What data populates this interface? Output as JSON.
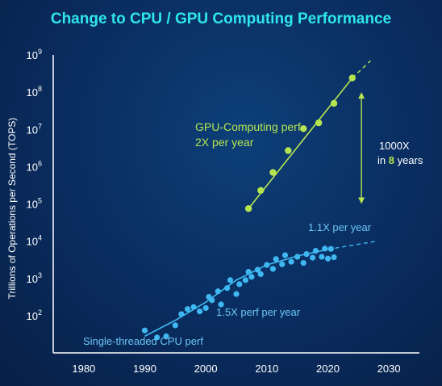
{
  "chart_data": {
    "type": "scatter",
    "title": "Change to CPU / GPU Computing Performance",
    "ylabel": "Trillions of Operations per Second (TOPS)",
    "xlabel": "",
    "y_scale": "log",
    "xlim": [
      1975,
      2035
    ],
    "ylim": [
      10,
      1000000000
    ],
    "x_ticks": [
      "1980",
      "1990",
      "2000",
      "2010",
      "2020",
      "2030"
    ],
    "y_ticks": [
      {
        "base": "10",
        "exp": "2",
        "value": 100
      },
      {
        "base": "10",
        "exp": "3",
        "value": 1000
      },
      {
        "base": "10",
        "exp": "4",
        "value": 10000
      },
      {
        "base": "10",
        "exp": "5",
        "value": 100000
      },
      {
        "base": "10",
        "exp": "6",
        "value": 1000000
      },
      {
        "base": "10",
        "exp": "7",
        "value": 10000000
      },
      {
        "base": "10",
        "exp": "8",
        "value": 100000000
      },
      {
        "base": "10",
        "exp": "9",
        "value": 1000000000
      }
    ],
    "colors": {
      "gpu": "#b5e550",
      "cpu": "#3fb8f2",
      "accent": "#2ee6ee"
    },
    "series": [
      {
        "name": "GPU-Computing perf",
        "points": [
          {
            "x": 2007,
            "y": 75000
          },
          {
            "x": 2009,
            "y": 230000
          },
          {
            "x": 2011,
            "y": 700000
          },
          {
            "x": 2013.5,
            "y": 2700000
          },
          {
            "x": 2016,
            "y": 10500000
          },
          {
            "x": 2018.5,
            "y": 15000000
          },
          {
            "x": 2021,
            "y": 50000000
          },
          {
            "x": 2024,
            "y": 240000000
          }
        ],
        "trend": [
          {
            "x": 2007,
            "y": 75000
          },
          {
            "x": 2024,
            "y": 240000000
          }
        ],
        "trend_dashed": [
          {
            "x": 2024,
            "y": 240000000
          },
          {
            "x": 2027,
            "y": 700000000
          }
        ]
      },
      {
        "name": "Single-threaded CPU perf",
        "points": [
          {
            "x": 1990,
            "y": 40
          },
          {
            "x": 1992,
            "y": 26
          },
          {
            "x": 1993.5,
            "y": 28
          },
          {
            "x": 1995,
            "y": 55
          },
          {
            "x": 1996,
            "y": 110
          },
          {
            "x": 1997,
            "y": 150
          },
          {
            "x": 1998,
            "y": 170
          },
          {
            "x": 1999,
            "y": 130
          },
          {
            "x": 2000,
            "y": 160
          },
          {
            "x": 2000.5,
            "y": 320
          },
          {
            "x": 2001,
            "y": 260
          },
          {
            "x": 2002,
            "y": 450
          },
          {
            "x": 2002.5,
            "y": 200
          },
          {
            "x": 2003.5,
            "y": 550
          },
          {
            "x": 2004,
            "y": 900
          },
          {
            "x": 2005,
            "y": 380
          },
          {
            "x": 2005.5,
            "y": 700
          },
          {
            "x": 2006.5,
            "y": 900
          },
          {
            "x": 2007,
            "y": 1500
          },
          {
            "x": 2007.5,
            "y": 1100
          },
          {
            "x": 2008.5,
            "y": 1700
          },
          {
            "x": 2009,
            "y": 1300
          },
          {
            "x": 2010,
            "y": 2300
          },
          {
            "x": 2011,
            "y": 1800
          },
          {
            "x": 2011.5,
            "y": 3300
          },
          {
            "x": 2012.5,
            "y": 2400
          },
          {
            "x": 2013,
            "y": 4200
          },
          {
            "x": 2014,
            "y": 2800
          },
          {
            "x": 2015,
            "y": 3800
          },
          {
            "x": 2016,
            "y": 2600
          },
          {
            "x": 2016.5,
            "y": 4500
          },
          {
            "x": 2017.5,
            "y": 3600
          },
          {
            "x": 2018,
            "y": 5500
          },
          {
            "x": 2019,
            "y": 3800
          },
          {
            "x": 2019.5,
            "y": 6300
          },
          {
            "x": 2020,
            "y": 3400
          },
          {
            "x": 2020.5,
            "y": 6200
          },
          {
            "x": 2021,
            "y": 3700
          }
        ],
        "trend": [
          {
            "x": 1990,
            "y": 28
          },
          {
            "x": 1995,
            "y": 75
          },
          {
            "x": 2000,
            "y": 230
          },
          {
            "x": 2005,
            "y": 900
          },
          {
            "x": 2010,
            "y": 2300
          },
          {
            "x": 2015,
            "y": 4000
          },
          {
            "x": 2020,
            "y": 6000
          }
        ],
        "trend_dashed": [
          {
            "x": 2020,
            "y": 6000
          },
          {
            "x": 2028,
            "y": 10000
          }
        ]
      }
    ],
    "annotations": {
      "gpu_label_line1": "GPU-Computing perf",
      "gpu_label_line2": "2X per year",
      "gap_line1": "1000X",
      "gap_line2_pre": "in ",
      "gap_line2_num": "8",
      "gap_line2_post": " years",
      "cpu_recent": "1.1X per year",
      "cpu_early": "1.5X perf per year",
      "cpu_label": "Single-threaded CPU perf"
    },
    "arrow_range": {
      "x": 2025.5,
      "y_from": 100000,
      "y_to": 100000000
    }
  }
}
